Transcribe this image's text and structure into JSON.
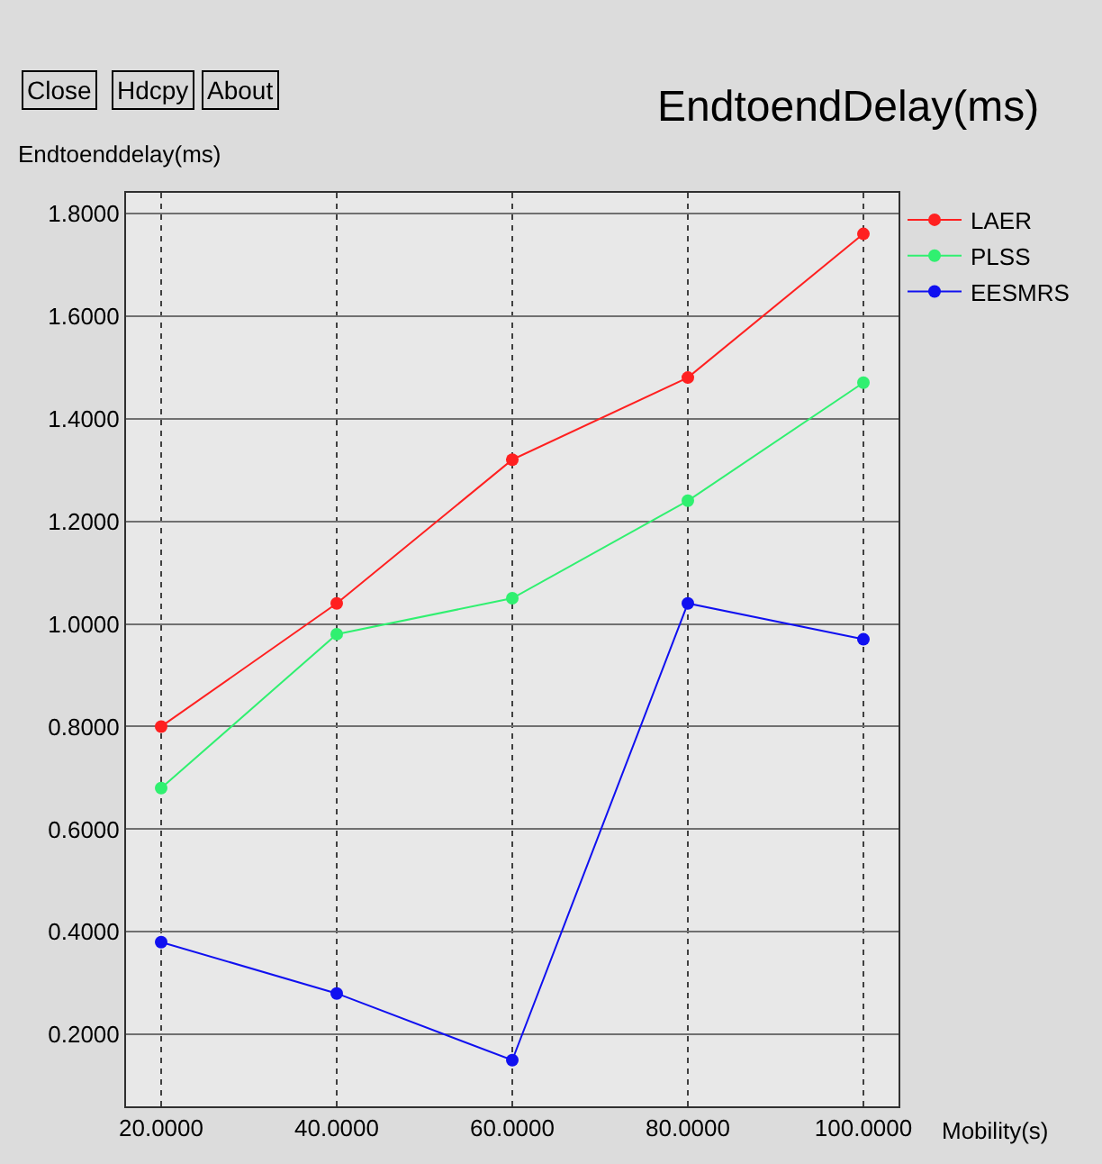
{
  "chart_data": {
    "type": "line",
    "title": "EndtoendDelay(ms)",
    "xlabel": "Mobility(s)",
    "ylabel": "Endtoenddelay(ms)",
    "annotations": [
      "Close",
      "Hdcpy",
      "About"
    ],
    "x": [
      20,
      40,
      60,
      80,
      100
    ],
    "series": [
      {
        "name": "LAER",
        "color": "#ff2020",
        "values": [
          0.8,
          1.04,
          1.32,
          1.48,
          1.76
        ]
      },
      {
        "name": "PLSS",
        "color": "#30f070",
        "values": [
          0.68,
          0.98,
          1.05,
          1.24,
          1.47
        ]
      },
      {
        "name": "EESMRS",
        "color": "#1010f0",
        "values": [
          0.38,
          0.28,
          0.15,
          1.04,
          0.97
        ]
      }
    ],
    "xlim": [
      16,
      104
    ],
    "xticks": [
      {
        "value": 20,
        "label": "20.0000"
      },
      {
        "value": 40,
        "label": "40.0000"
      },
      {
        "value": 60,
        "label": "60.0000"
      },
      {
        "value": 80,
        "label": "80.0000"
      },
      {
        "value": 100,
        "label": "100.0000"
      }
    ],
    "ylim": [
      0.06,
      1.84
    ],
    "yticks": [
      {
        "value": 0.2,
        "label": "0.2000"
      },
      {
        "value": 0.4,
        "label": "0.4000"
      },
      {
        "value": 0.6,
        "label": "0.6000"
      },
      {
        "value": 0.8,
        "label": "0.8000"
      },
      {
        "value": 1.0,
        "label": "1.0000"
      },
      {
        "value": 1.2,
        "label": "1.2000"
      },
      {
        "value": 1.4,
        "label": "1.4000"
      },
      {
        "value": 1.6,
        "label": "1.6000"
      },
      {
        "value": 1.8,
        "label": "1.8000"
      }
    ],
    "grid": true,
    "legend": "top right",
    "marker": "circle",
    "line_style": "solid"
  }
}
